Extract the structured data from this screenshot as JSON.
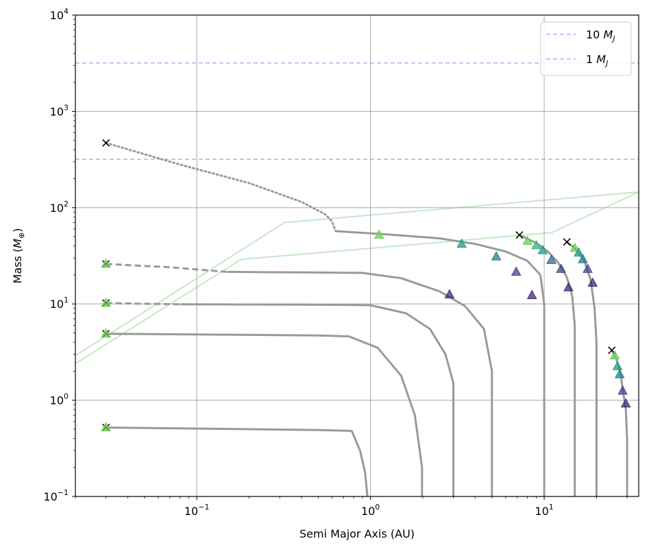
{
  "chart_data": {
    "type": "line",
    "xlabel": "Semi Major Axis (AU)",
    "ylabel": "Mass (M⊕)",
    "xscale": "log",
    "yscale": "log",
    "xlim": [
      0.02,
      35
    ],
    "ylim": [
      0.1,
      10000
    ],
    "x_ticks": [
      {
        "value": 0.1,
        "label": "10^-1"
      },
      {
        "value": 1,
        "label": "10^0"
      },
      {
        "value": 10,
        "label": "10^1"
      }
    ],
    "y_ticks": [
      {
        "value": 0.1,
        "label": "10^-1"
      },
      {
        "value": 1,
        "label": "10^0"
      },
      {
        "value": 10,
        "label": "10^1"
      },
      {
        "value": 100,
        "label": "10^2"
      },
      {
        "value": 1000,
        "label": "10^3"
      },
      {
        "value": 10000,
        "label": "10^4"
      }
    ],
    "grid": true,
    "legend_position": "top-right",
    "legend": [
      {
        "label": "10 M_J",
        "color": "#7b7be8",
        "style": "dashed"
      },
      {
        "label": "1 M_J",
        "color": "#7b7be8",
        "style": "dashed"
      }
    ],
    "reference_lines": [
      {
        "label": "10 M_J",
        "y": 3178,
        "color": "#7b7be8"
      },
      {
        "label": "1 M_J",
        "y": 317.8,
        "color": "#7b7be8"
      }
    ],
    "isolation_lines": [
      {
        "color": "#7fc97f",
        "points": [
          [
            0.02,
            2.9
          ],
          [
            0.32,
            70
          ],
          [
            35,
            145
          ]
        ]
      },
      {
        "color": "#7fc97f",
        "points": [
          [
            0.02,
            2.4
          ],
          [
            0.18,
            29
          ],
          [
            11,
            55
          ],
          [
            35,
            145
          ]
        ]
      }
    ],
    "tracks": [
      {
        "name": "track-1",
        "start": [
          0.03,
          470
        ],
        "segments": [
          {
            "style": "dotted",
            "points": [
              [
                0.03,
                470
              ],
              [
                0.08,
                280
              ],
              [
                0.2,
                180
              ],
              [
                0.4,
                115
              ],
              [
                0.55,
                85
              ],
              [
                0.6,
                72
              ],
              [
                0.63,
                57
              ]
            ]
          },
          {
            "style": "solid",
            "points": [
              [
                0.63,
                57
              ],
              [
                1.2,
                53
              ],
              [
                2.5,
                48
              ],
              [
                4,
                42
              ],
              [
                6,
                35
              ],
              [
                8,
                28
              ],
              [
                9.5,
                20
              ],
              [
                10,
                10
              ],
              [
                10,
                0.1
              ]
            ]
          }
        ],
        "markers": [
          [
            1.12,
            52
          ],
          [
            3.35,
            42
          ],
          [
            5.3,
            31
          ],
          [
            6.9,
            21.5
          ],
          [
            8.5,
            12.3
          ]
        ]
      },
      {
        "name": "track-2",
        "start": [
          0.03,
          26
        ],
        "segments": [
          {
            "style": "dashed",
            "points": [
              [
                0.03,
                26
              ],
              [
                0.07,
                24
              ],
              [
                0.15,
                21.5
              ]
            ]
          },
          {
            "style": "solid",
            "points": [
              [
                0.15,
                21.5
              ],
              [
                0.5,
                21.2
              ],
              [
                0.9,
                21
              ],
              [
                1.5,
                18.5
              ],
              [
                2.5,
                13.5
              ],
              [
                3.5,
                9.5
              ],
              [
                4.5,
                5.5
              ],
              [
                5,
                2
              ],
              [
                5,
                0.1
              ]
            ]
          }
        ],
        "markers": [
          [
            0.03,
            26
          ],
          [
            2.85,
            12.5
          ]
        ]
      },
      {
        "name": "track-3",
        "start": [
          0.03,
          10.2
        ],
        "segments": [
          {
            "style": "dashed",
            "points": [
              [
                0.03,
                10.2
              ],
              [
                0.08,
                9.9
              ]
            ]
          },
          {
            "style": "solid",
            "points": [
              [
                0.08,
                9.9
              ],
              [
                0.5,
                9.8
              ],
              [
                1,
                9.7
              ],
              [
                1.6,
                8
              ],
              [
                2.2,
                5.5
              ],
              [
                2.7,
                3
              ],
              [
                3,
                1.5
              ],
              [
                3,
                0.1
              ]
            ]
          }
        ],
        "markers": [
          [
            0.03,
            10.2
          ]
        ]
      },
      {
        "name": "track-4",
        "start": [
          0.03,
          4.9
        ],
        "segments": [
          {
            "style": "solid",
            "points": [
              [
                0.03,
                4.9
              ],
              [
                0.5,
                4.7
              ],
              [
                0.75,
                4.6
              ],
              [
                1.1,
                3.5
              ],
              [
                1.5,
                1.8
              ],
              [
                1.8,
                0.7
              ],
              [
                1.98,
                0.2
              ],
              [
                1.98,
                0.1
              ]
            ]
          }
        ],
        "markers": [
          [
            0.03,
            4.9
          ]
        ]
      },
      {
        "name": "track-5",
        "start": [
          0.03,
          0.52
        ],
        "segments": [
          {
            "style": "solid",
            "points": [
              [
                0.03,
                0.52
              ],
              [
                0.5,
                0.49
              ],
              [
                0.78,
                0.48
              ],
              [
                0.87,
                0.3
              ],
              [
                0.93,
                0.18
              ],
              [
                0.96,
                0.1
              ]
            ]
          }
        ],
        "markers": [
          [
            0.03,
            0.52
          ]
        ]
      },
      {
        "name": "track-6",
        "start": [
          7.2,
          52
        ],
        "segments": [
          {
            "style": "solid",
            "points": [
              [
                7.2,
                52
              ],
              [
                9,
                43
              ],
              [
                10.5,
                35
              ],
              [
                12,
                27
              ],
              [
                13.5,
                19
              ],
              [
                14.5,
                12
              ],
              [
                15,
                6
              ],
              [
                15,
                0.1
              ]
            ]
          }
        ],
        "markers": [
          [
            8.0,
            45
          ],
          [
            9.0,
            40.5
          ],
          [
            9.8,
            36
          ],
          [
            11.0,
            28.5
          ],
          [
            12.5,
            23
          ],
          [
            13.8,
            14.8
          ]
        ]
      },
      {
        "name": "track-7",
        "start": [
          13.5,
          44
        ],
        "segments": [
          {
            "style": "solid",
            "points": [
              [
                13.5,
                44
              ],
              [
                15,
                38
              ],
              [
                17,
                28
              ],
              [
                18.5,
                18
              ],
              [
                19.5,
                9
              ],
              [
                20,
                4
              ],
              [
                20,
                0.1
              ]
            ]
          }
        ],
        "markers": [
          [
            15.0,
            38
          ],
          [
            15.8,
            34
          ],
          [
            16.7,
            29
          ],
          [
            17.8,
            23
          ],
          [
            19.0,
            16.5
          ]
        ]
      },
      {
        "name": "track-8",
        "start": [
          24.5,
          3.3
        ],
        "segments": [
          {
            "style": "solid",
            "points": [
              [
                24.5,
                3.3
              ],
              [
                26,
                2.7
              ],
              [
                27.5,
                1.9
              ],
              [
                28.5,
                1.2
              ],
              [
                29.5,
                0.8
              ],
              [
                30,
                0.4
              ],
              [
                30,
                0.1
              ]
            ]
          }
        ],
        "markers": [
          [
            25.5,
            2.9
          ],
          [
            26.4,
            2.25
          ],
          [
            27.2,
            1.85
          ],
          [
            28.3,
            1.25
          ],
          [
            29.5,
            0.92
          ]
        ]
      }
    ]
  }
}
